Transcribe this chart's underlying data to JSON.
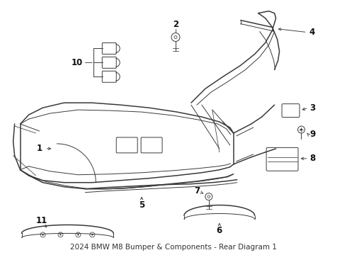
{
  "title": "2024 BMW M8 Bumper & Components - Rear Diagram 1",
  "title_fontsize": 7.5,
  "title_color": "#333333",
  "bg_color": "#ffffff",
  "line_color": "#3a3a3a",
  "label_color": "#111111",
  "label_fontsize": 8.5,
  "leader_color": "#444444",
  "fig_width": 4.9,
  "fig_height": 3.6,
  "dpi": 100
}
